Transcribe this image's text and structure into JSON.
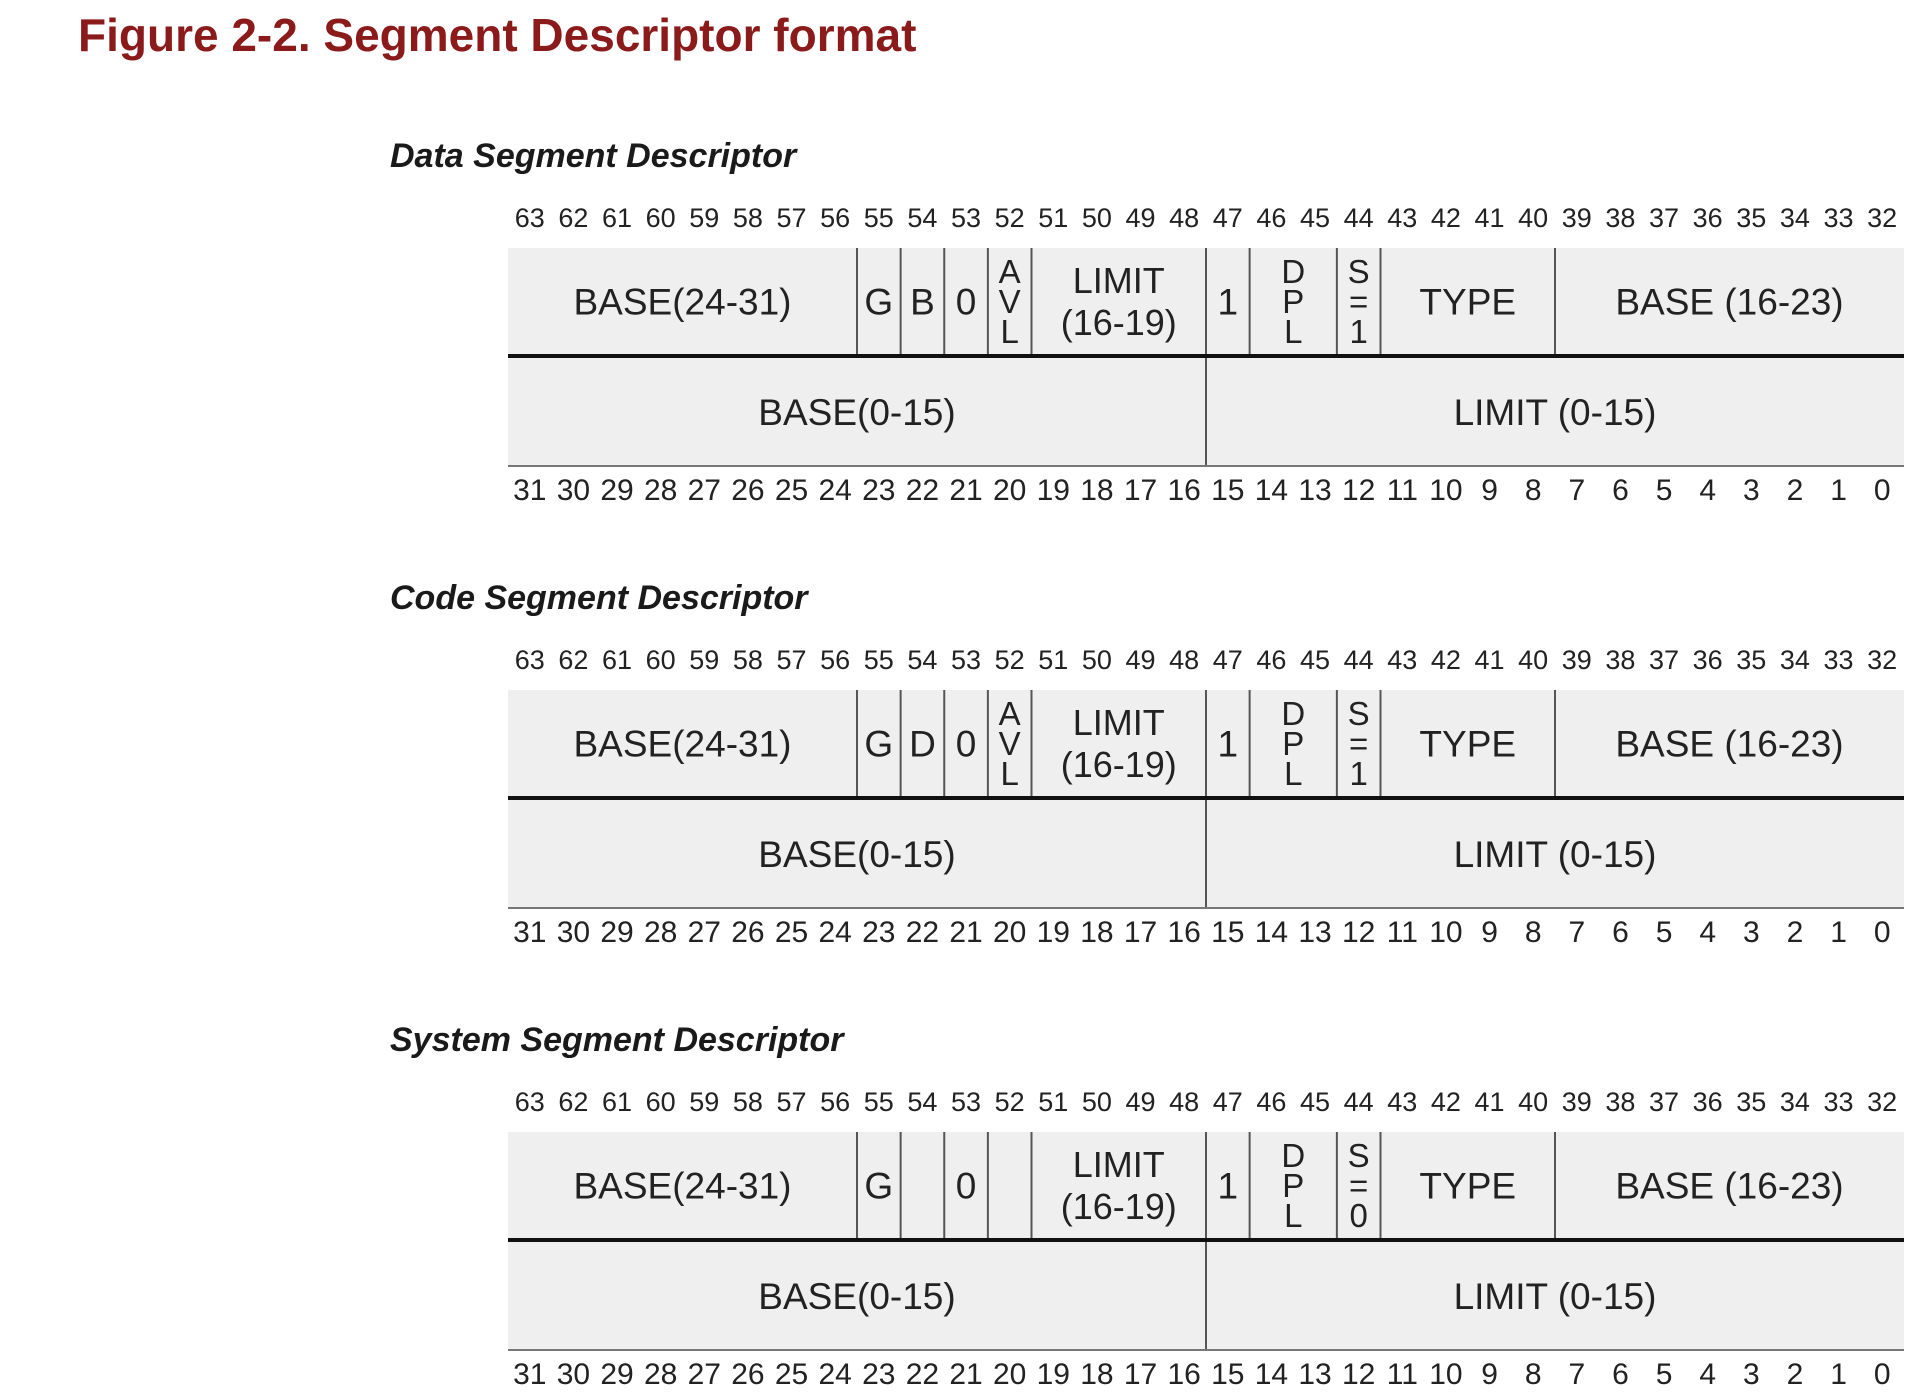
{
  "figure": {
    "title": "Figure 2-2. Segment Descriptor format",
    "colors": {
      "title": "#8b1a1a",
      "cell_fill": "#efefef",
      "line": "#111111",
      "text": "#222222"
    }
  },
  "top_bits": [
    "63",
    "62",
    "61",
    "60",
    "59",
    "58",
    "57",
    "56",
    "55",
    "54",
    "53",
    "52",
    "51",
    "50",
    "49",
    "48",
    "47",
    "46",
    "45",
    "44",
    "43",
    "42",
    "41",
    "40",
    "39",
    "38",
    "37",
    "36",
    "35",
    "34",
    "33",
    "32"
  ],
  "bottom_bits": [
    "31",
    "30",
    "29",
    "28",
    "27",
    "26",
    "25",
    "24",
    "23",
    "22",
    "21",
    "20",
    "19",
    "18",
    "17",
    "16",
    "15",
    "14",
    "13",
    "12",
    "11",
    "10",
    "9",
    "8",
    "7",
    "6",
    "5",
    "4",
    "3",
    "2",
    "1",
    "0"
  ],
  "descriptors": [
    {
      "name": "Data Segment Descriptor",
      "upper_fields": [
        {
          "bits": [
            63,
            56
          ],
          "lines": [
            "BASE(24-31)"
          ]
        },
        {
          "bits": [
            55,
            55
          ],
          "lines": [
            "G"
          ]
        },
        {
          "bits": [
            54,
            54
          ],
          "lines": [
            "B"
          ]
        },
        {
          "bits": [
            53,
            53
          ],
          "lines": [
            "0"
          ]
        },
        {
          "bits": [
            52,
            52
          ],
          "lines": [
            "A",
            "V",
            "L"
          ]
        },
        {
          "bits": [
            51,
            48
          ],
          "lines": [
            "LIMIT",
            "(16-19)"
          ]
        },
        {
          "bits": [
            47,
            47
          ],
          "lines": [
            "1"
          ]
        },
        {
          "bits": [
            46,
            45
          ],
          "lines": [
            "D",
            "P",
            "L"
          ]
        },
        {
          "bits": [
            44,
            44
          ],
          "lines": [
            "S",
            "=",
            "1"
          ]
        },
        {
          "bits": [
            43,
            40
          ],
          "lines": [
            "TYPE"
          ]
        },
        {
          "bits": [
            39,
            32
          ],
          "lines": [
            "BASE (16-23)"
          ]
        }
      ],
      "lower_fields": [
        {
          "bits": [
            31,
            16
          ],
          "lines": [
            "BASE(0-15)"
          ]
        },
        {
          "bits": [
            15,
            0
          ],
          "lines": [
            "LIMIT (0-15)"
          ]
        }
      ]
    },
    {
      "name": "Code Segment Descriptor",
      "upper_fields": [
        {
          "bits": [
            63,
            56
          ],
          "lines": [
            "BASE(24-31)"
          ]
        },
        {
          "bits": [
            55,
            55
          ],
          "lines": [
            "G"
          ]
        },
        {
          "bits": [
            54,
            54
          ],
          "lines": [
            "D"
          ]
        },
        {
          "bits": [
            53,
            53
          ],
          "lines": [
            "0"
          ]
        },
        {
          "bits": [
            52,
            52
          ],
          "lines": [
            "A",
            "V",
            "L"
          ]
        },
        {
          "bits": [
            51,
            48
          ],
          "lines": [
            "LIMIT",
            "(16-19)"
          ]
        },
        {
          "bits": [
            47,
            47
          ],
          "lines": [
            "1"
          ]
        },
        {
          "bits": [
            46,
            45
          ],
          "lines": [
            "D",
            "P",
            "L"
          ]
        },
        {
          "bits": [
            44,
            44
          ],
          "lines": [
            "S",
            "=",
            "1"
          ]
        },
        {
          "bits": [
            43,
            40
          ],
          "lines": [
            "TYPE"
          ]
        },
        {
          "bits": [
            39,
            32
          ],
          "lines": [
            "BASE (16-23)"
          ]
        }
      ],
      "lower_fields": [
        {
          "bits": [
            31,
            16
          ],
          "lines": [
            "BASE(0-15)"
          ]
        },
        {
          "bits": [
            15,
            0
          ],
          "lines": [
            "LIMIT (0-15)"
          ]
        }
      ]
    },
    {
      "name": "System Segment Descriptor",
      "upper_fields": [
        {
          "bits": [
            63,
            56
          ],
          "lines": [
            "BASE(24-31)"
          ]
        },
        {
          "bits": [
            55,
            55
          ],
          "lines": [
            "G"
          ]
        },
        {
          "bits": [
            54,
            54
          ],
          "lines": []
        },
        {
          "bits": [
            53,
            53
          ],
          "lines": [
            "0"
          ]
        },
        {
          "bits": [
            52,
            52
          ],
          "lines": []
        },
        {
          "bits": [
            51,
            48
          ],
          "lines": [
            "LIMIT",
            "(16-19)"
          ]
        },
        {
          "bits": [
            47,
            47
          ],
          "lines": [
            "1"
          ]
        },
        {
          "bits": [
            46,
            45
          ],
          "lines": [
            "D",
            "P",
            "L"
          ]
        },
        {
          "bits": [
            44,
            44
          ],
          "lines": [
            "S",
            "=",
            "0"
          ]
        },
        {
          "bits": [
            43,
            40
          ],
          "lines": [
            "TYPE"
          ]
        },
        {
          "bits": [
            39,
            32
          ],
          "lines": [
            "BASE (16-23)"
          ]
        }
      ],
      "lower_fields": [
        {
          "bits": [
            31,
            16
          ],
          "lines": [
            "BASE(0-15)"
          ]
        },
        {
          "bits": [
            15,
            0
          ],
          "lines": [
            "LIMIT (0-15)"
          ]
        }
      ]
    }
  ]
}
